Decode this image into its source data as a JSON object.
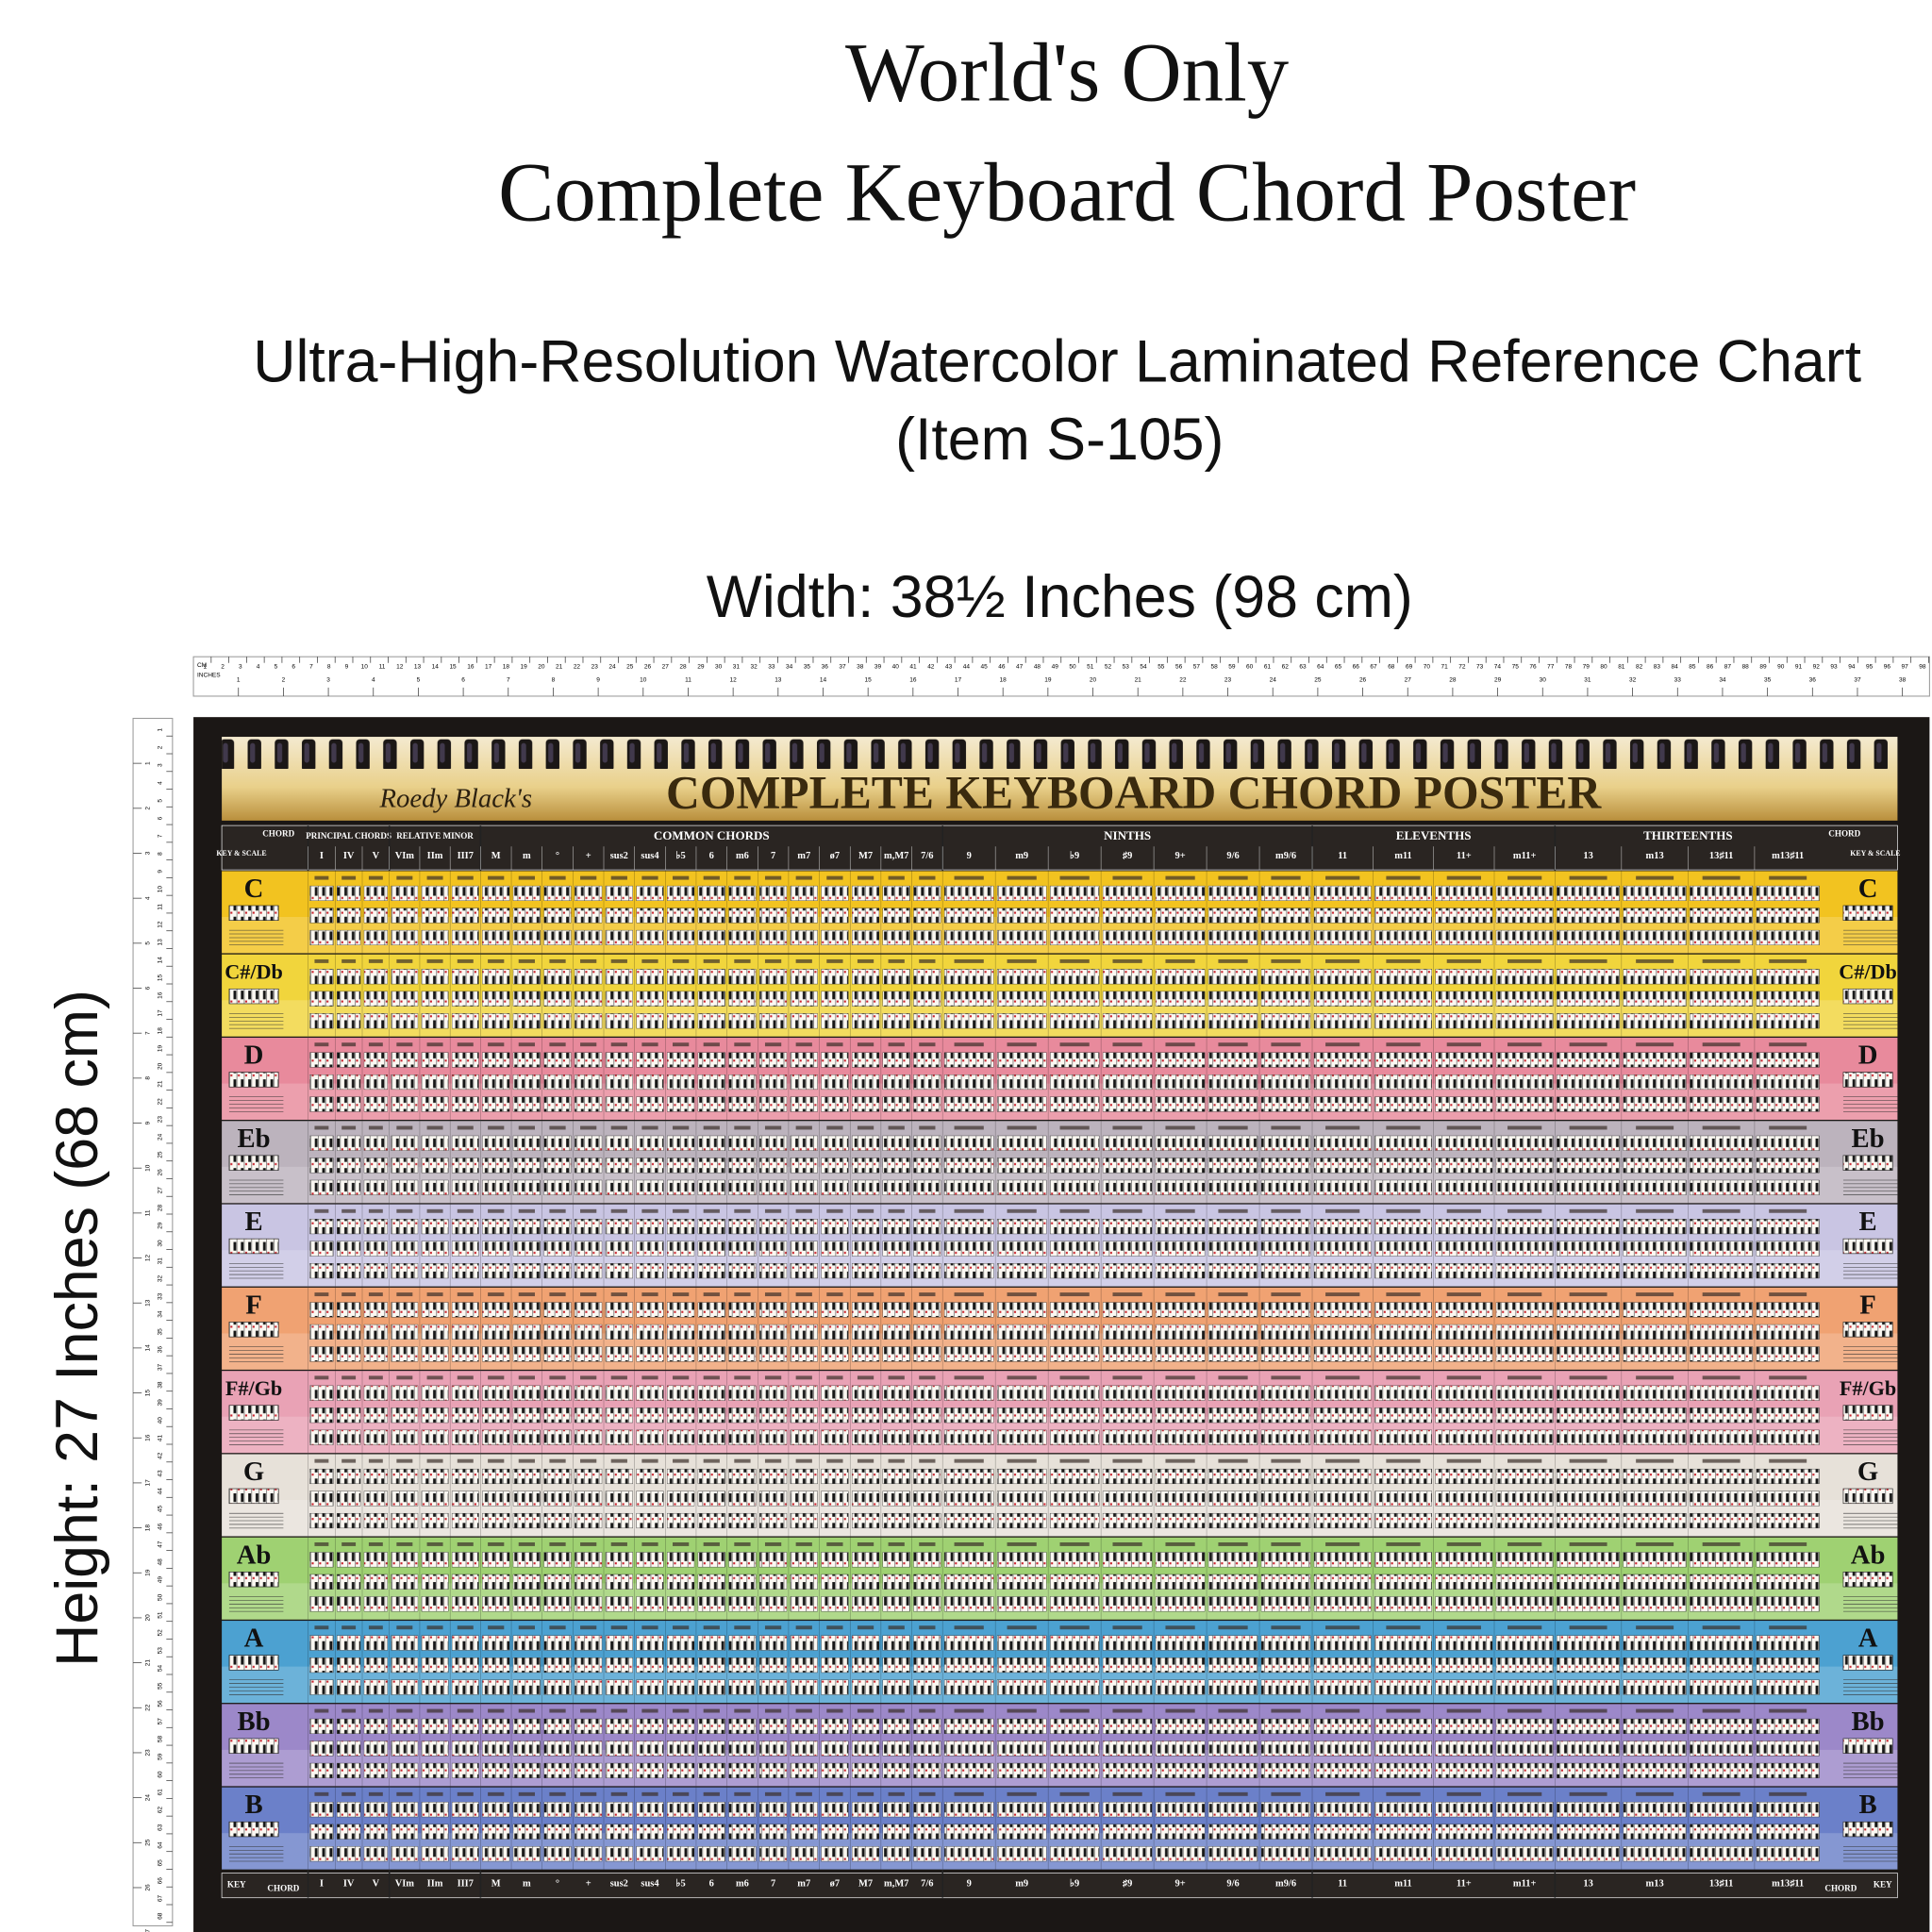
{
  "header": {
    "title_line1": "World's Only",
    "title_line2": "Complete Keyboard Chord Poster",
    "subtitle": "Ultra-High-Resolution Watercolor Laminated Reference Chart",
    "item": "(Item S-105)",
    "width": "Width: 38½ Inches (98 cm)",
    "height": "Height: 27 Inches (68 cm)"
  },
  "ruler": {
    "cm_label": "CM",
    "inch_label": "INCHES",
    "width_cm": [
      1,
      2,
      3,
      4,
      5,
      6,
      7,
      8,
      9,
      10,
      11,
      12,
      13,
      14,
      15,
      16,
      17,
      18,
      19,
      20,
      21,
      22,
      23,
      24,
      25,
      26,
      27,
      28,
      29,
      30,
      31,
      32,
      33,
      34,
      35,
      36,
      37,
      38,
      39,
      40,
      41,
      42,
      43,
      44,
      45,
      46,
      47,
      48,
      49,
      50,
      51,
      52,
      53,
      54,
      55,
      56,
      57,
      58,
      59,
      60,
      61,
      62,
      63,
      64,
      65,
      66,
      67,
      68,
      69,
      70,
      71,
      72,
      73,
      74,
      75,
      76,
      77,
      78,
      79,
      80,
      81,
      82,
      83,
      84,
      85,
      86,
      87,
      88,
      89,
      90,
      91,
      92,
      93,
      94,
      95,
      96,
      97,
      98
    ],
    "width_inches": [
      1,
      2,
      3,
      4,
      5,
      6,
      7,
      8,
      9,
      10,
      11,
      12,
      13,
      14,
      15,
      16,
      17,
      18,
      19,
      20,
      21,
      22,
      23,
      24,
      25,
      26,
      27,
      28,
      29,
      30,
      31,
      32,
      33,
      34,
      35,
      36,
      37,
      38
    ],
    "height_cm": [
      1,
      2,
      3,
      4,
      5,
      6,
      7,
      8,
      9,
      10,
      11,
      12,
      13,
      14,
      15,
      16,
      17,
      18,
      19,
      20,
      21,
      22,
      23,
      24,
      25,
      26,
      27,
      28,
      29,
      30,
      31,
      32,
      33,
      34,
      35,
      36,
      37,
      38,
      39,
      40,
      41,
      42,
      43,
      44,
      45,
      46,
      47,
      48,
      49,
      50,
      51,
      52,
      53,
      54,
      55,
      56,
      57,
      58,
      59,
      60,
      61,
      62,
      63,
      64,
      65,
      66,
      67,
      68
    ],
    "height_inches": [
      1,
      2,
      3,
      4,
      5,
      6,
      7,
      8,
      9,
      10,
      11,
      12,
      13,
      14,
      15,
      16,
      17,
      18,
      19,
      20,
      21,
      22,
      23,
      24,
      25,
      26,
      27
    ]
  },
  "poster": {
    "brand": "Roedy Black's",
    "title": "COMPLETE KEYBOARD CHORD POSTER",
    "chord_label": "CHORD",
    "key_label": "KEY & SCALE",
    "bottom_key_label": "KEY",
    "groups": [
      {
        "name": "PRINCIPAL CHORDS",
        "columns": [
          "I",
          "IV",
          "V"
        ]
      },
      {
        "name": "RELATIVE MINOR",
        "columns": [
          "VIm",
          "IIm",
          "III7"
        ]
      },
      {
        "name": "COMMON CHORDS",
        "columns": [
          "M",
          "m",
          "°",
          "+",
          "sus2",
          "sus4",
          "♭5",
          "6",
          "m6",
          "7",
          "m7",
          "ø7",
          "M7",
          "m,M7",
          "7/6"
        ]
      },
      {
        "name": "NINTHS",
        "columns": [
          "9",
          "m9",
          "♭9",
          "♯9",
          "9+",
          "9/6",
          "m9/6"
        ]
      },
      {
        "name": "ELEVENTHS",
        "columns": [
          "11",
          "m11",
          "11+",
          "m11+"
        ]
      },
      {
        "name": "THIRTEENTHS",
        "columns": [
          "13",
          "m13",
          "13♯11",
          "m13♯11"
        ]
      }
    ],
    "keys": [
      {
        "name": "C",
        "color": "#f2c320"
      },
      {
        "name": "C#/Db",
        "color": "#f1d53c"
      },
      {
        "name": "D",
        "color": "#e88a9c"
      },
      {
        "name": "Eb",
        "color": "#bcb3bd"
      },
      {
        "name": "E",
        "color": "#c9c5e3"
      },
      {
        "name": "F",
        "color": "#f0a272"
      },
      {
        "name": "F#/Gb",
        "color": "#e9a2b5"
      },
      {
        "name": "G",
        "color": "#e7e1d9"
      },
      {
        "name": "Ab",
        "color": "#9fd172"
      },
      {
        "name": "A",
        "color": "#4ca1d1"
      },
      {
        "name": "Bb",
        "color": "#9c88c9"
      },
      {
        "name": "B",
        "color": "#6b80c9"
      }
    ]
  }
}
